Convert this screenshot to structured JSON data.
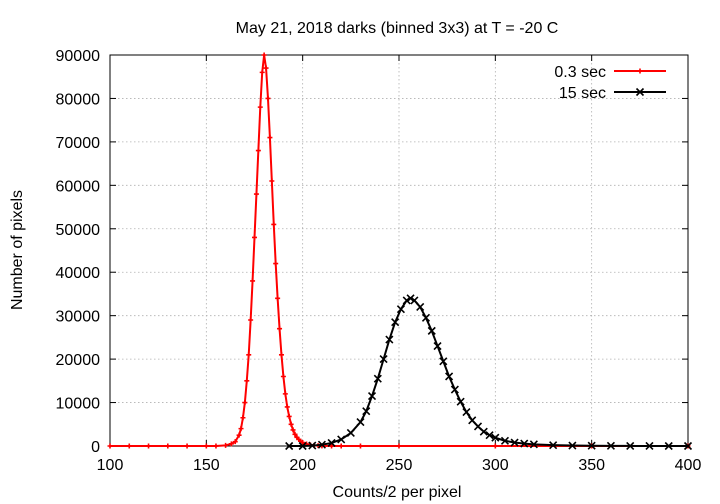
{
  "chart_data": {
    "type": "line",
    "title": "May 21, 2018 darks (binned 3x3) at T = -20 C",
    "xlabel": "Counts/2 per pixel",
    "ylabel": "Number of pixels",
    "xlim": [
      100,
      400
    ],
    "ylim": [
      0,
      90000
    ],
    "xticks": [
      100,
      150,
      200,
      250,
      300,
      350,
      400
    ],
    "yticks": [
      0,
      10000,
      20000,
      30000,
      40000,
      50000,
      60000,
      70000,
      80000,
      90000
    ],
    "grid": true,
    "legend_position": "top-right",
    "series": [
      {
        "name": "0.3 sec",
        "color": "#ff0000",
        "marker": "plus",
        "x": [
          100,
          110,
          120,
          130,
          140,
          150,
          155,
          160,
          163,
          165,
          167,
          168,
          169,
          170,
          171,
          172,
          173,
          174,
          175,
          176,
          177,
          178,
          179,
          180,
          181,
          182,
          183,
          184,
          185,
          186,
          187,
          188,
          189,
          190,
          191,
          192,
          193,
          194,
          195,
          196,
          197,
          198,
          199,
          200,
          202,
          204,
          206,
          208,
          210,
          215,
          220,
          230,
          250,
          300,
          350,
          400
        ],
        "y": [
          0,
          0,
          0,
          0,
          0,
          0,
          0,
          150,
          500,
          1000,
          2500,
          4000,
          6500,
          10000,
          15000,
          21000,
          29000,
          38000,
          48000,
          58000,
          68000,
          78000,
          86000,
          90000,
          87000,
          80000,
          71000,
          61000,
          51000,
          42000,
          34000,
          27000,
          21000,
          16000,
          12000,
          9000,
          6800,
          5000,
          3700,
          2700,
          2000,
          1500,
          1100,
          800,
          450,
          250,
          150,
          80,
          40,
          0,
          0,
          0,
          0,
          0,
          0,
          0
        ]
      },
      {
        "name": "15 sec",
        "color": "#000000",
        "marker": "cross",
        "x": [
          193,
          200,
          205,
          210,
          215,
          220,
          225,
          230,
          233,
          236,
          239,
          242,
          245,
          248,
          251,
          254,
          256,
          258,
          261,
          264,
          267,
          270,
          273,
          276,
          279,
          282,
          285,
          288,
          291,
          294,
          297,
          300,
          305,
          310,
          315,
          320,
          330,
          340,
          350,
          360,
          370,
          380,
          390,
          400
        ],
        "y": [
          0,
          0,
          100,
          300,
          700,
          1500,
          3000,
          5500,
          8000,
          11500,
          15500,
          20000,
          24500,
          28500,
          31500,
          33500,
          34000,
          33500,
          32000,
          29500,
          26500,
          23000,
          19500,
          16000,
          13000,
          10200,
          7800,
          5900,
          4500,
          3300,
          2500,
          1900,
          1200,
          800,
          550,
          380,
          200,
          110,
          60,
          30,
          15,
          5,
          0,
          0
        ]
      }
    ]
  }
}
